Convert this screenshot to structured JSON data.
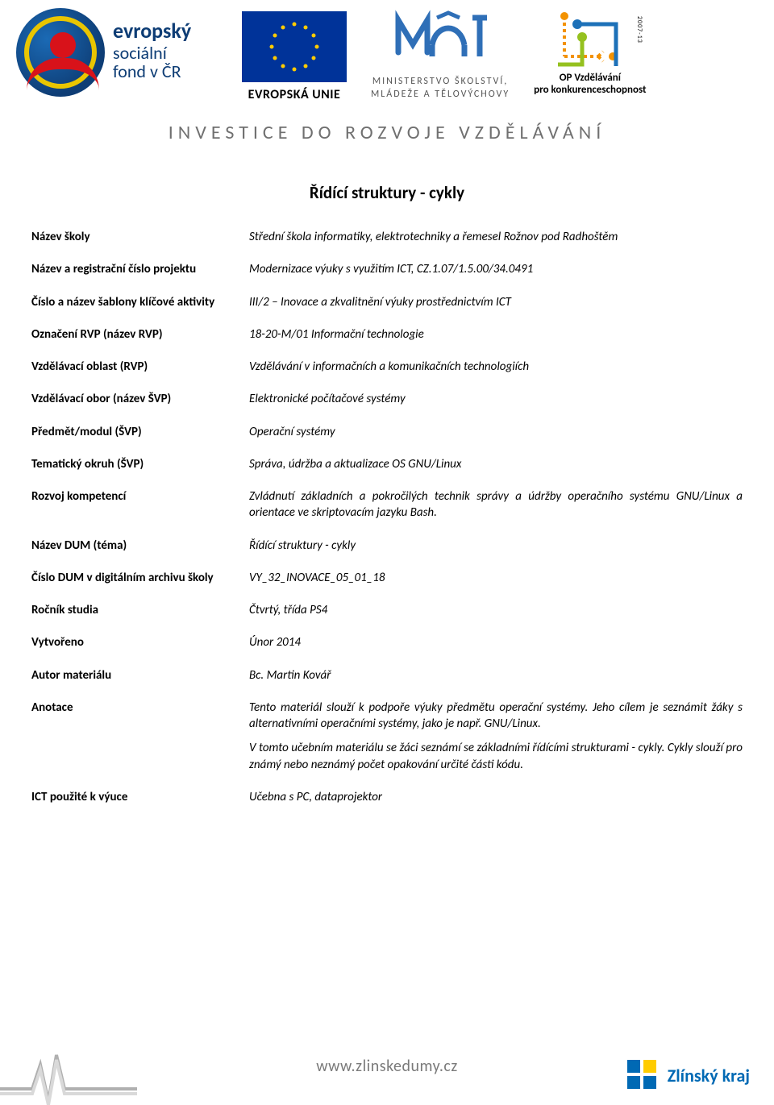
{
  "colors": {
    "text": "#000000",
    "muted": "#707070",
    "esf_blue": "#0e3d75",
    "eu_blue": "#003399",
    "eu_gold": "#ffcc00",
    "zk_blue": "#0069b4",
    "opvk_orange": "#f39200",
    "opvk_blue": "#1d71b8",
    "opvk_green": "#95c11f",
    "msmt_blue": "#2f6fb7"
  },
  "header": {
    "esf_line1": "evropský",
    "esf_line2": "sociální",
    "esf_line3": "fond v ČR",
    "eu_label": "EVROPSKÁ UNIE",
    "msmt_line1": "MINISTERSTVO ŠKOLSTVÍ,",
    "msmt_line2": "MLÁDEŽE A TĚLOVÝCHOVY",
    "opvk_line1": "OP Vzdělávání",
    "opvk_line2": "pro konkurenceschopnost",
    "opvk_years": "2007-13",
    "tagline": "INVESTICE DO ROZVOJE VZDĚLÁVÁNÍ"
  },
  "page_title": "Řídící struktury - cykly",
  "metadata": {
    "rows": [
      {
        "k": "Název školy",
        "v": "Střední škola informatiky, elektrotechniky a řemesel Rožnov pod Radhoštěm"
      },
      {
        "k": "Název a registrační číslo projektu",
        "v": "Modernizace výuky s využitím ICT, CZ.1.07/1.5.00/34.0491"
      },
      {
        "k": "Číslo a název šablony klíčové aktivity",
        "v": "III/2 – Inovace a zkvalitnění výuky prostřednictvím ICT"
      },
      {
        "k": "Označení RVP (název RVP)",
        "v": "18-20-M/01 Informační technologie"
      },
      {
        "k": "Vzdělávací oblast (RVP)",
        "v": "Vzdělávání v informačních a komunikačních technologiích"
      },
      {
        "k": "Vzdělávací obor (název ŠVP)",
        "v": "Elektronické počítačové systémy"
      },
      {
        "k": "Předmět/modul (ŠVP)",
        "v": "Operační systémy"
      },
      {
        "k": "Tematický okruh (ŠVP)",
        "v": "Správa, údržba a aktualizace OS GNU/Linux"
      },
      {
        "k": "Rozvoj kompetencí",
        "v": "Zvládnutí základních a pokročilých technik správy a údržby operačního systému GNU/Linux a orientace ve skriptovacím jazyku Bash."
      },
      {
        "k": "Název DUM (téma)",
        "v": "Řídící struktury - cykly"
      },
      {
        "k": "Číslo DUM v digitálním archivu školy",
        "v": "VY_32_INOVACE_05_01_18"
      },
      {
        "k": "Ročník studia",
        "v": "Čtvrtý, třída PS4"
      },
      {
        "k": "Vytvořeno",
        "v": "Únor 2014"
      },
      {
        "k": "Autor materiálu",
        "v": "Bc. Martin Kovář"
      }
    ],
    "annotation_key": "Anotace",
    "annotation_p1": "Tento materiál slouží k podpoře výuky předmětu operační systémy. Jeho cílem je seznámit žáky s alternativními operačními systémy, jako je např. GNU/Linux.",
    "annotation_p2": "V tomto učebním materiálu se žáci seznámí se základními řídícími strukturami - cykly. Cykly slouží pro známý nebo neznámý počet opakování určité části kódu.",
    "ict_key": "ICT použité k výuce",
    "ict_val": "Učebna s PC, dataprojektor"
  },
  "footer": {
    "url": "www.zlinskedumy.cz",
    "region": "Zlínský kraj"
  }
}
